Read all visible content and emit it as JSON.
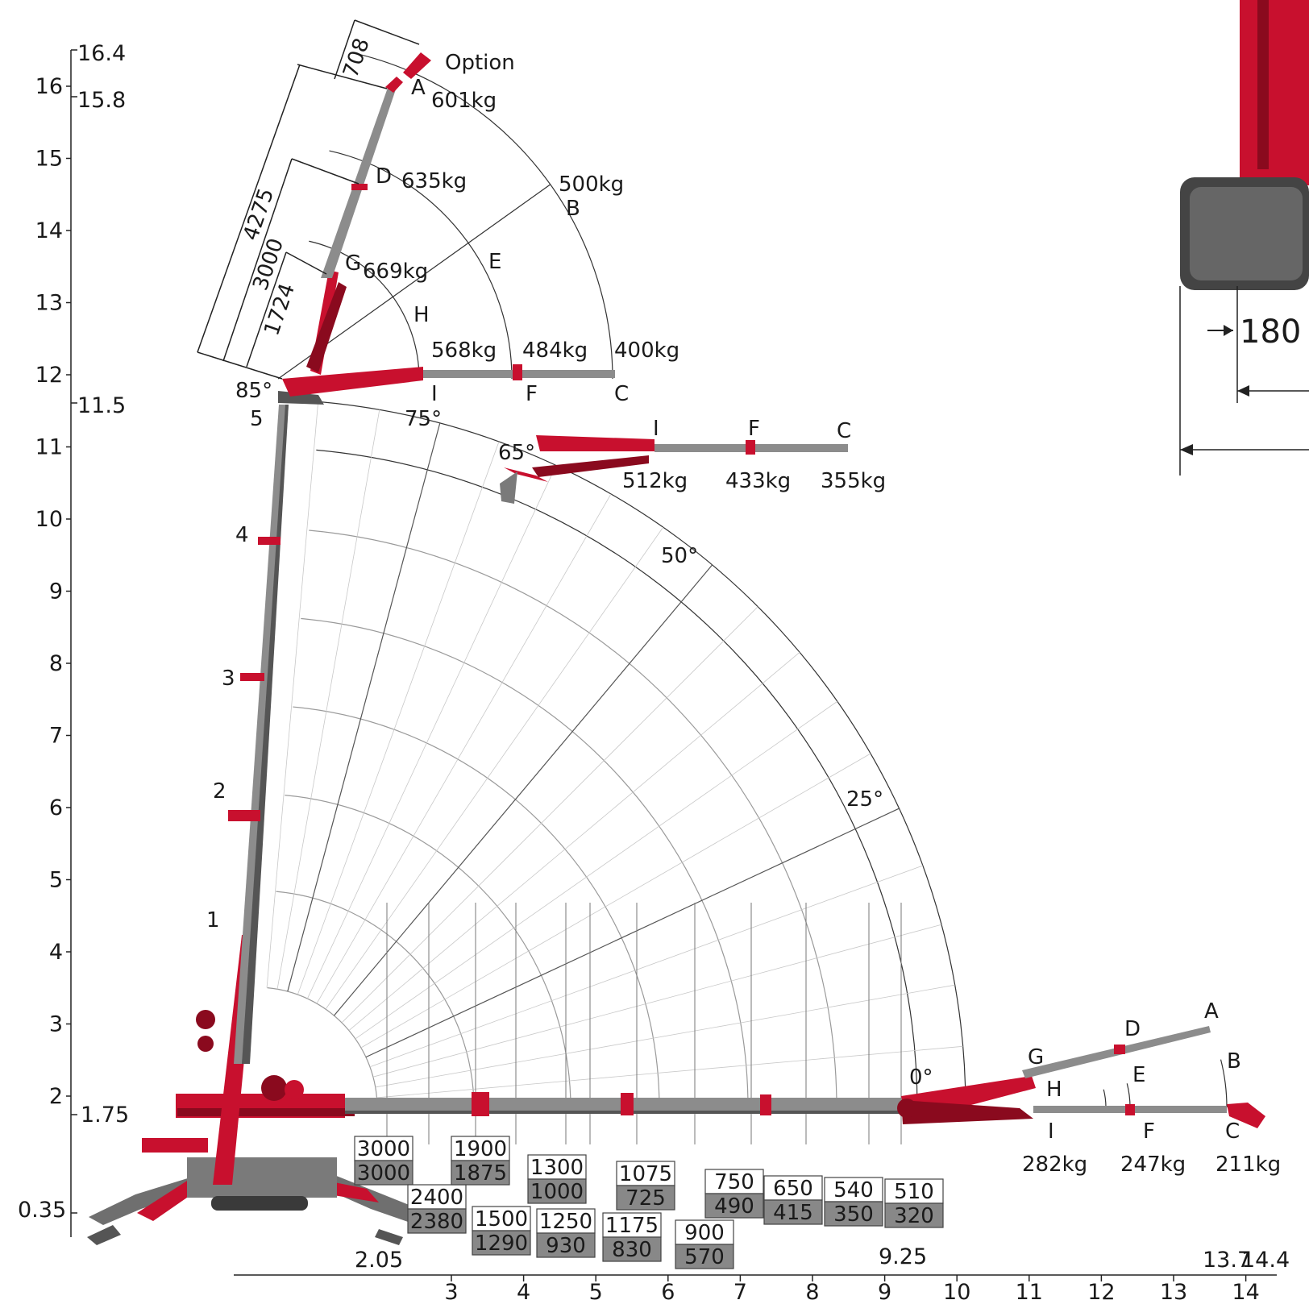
{
  "colors": {
    "boom": "#8c8c8c",
    "boom_dark": "#555555",
    "frame": "#c8102e",
    "frame_dark": "#8a0a1e",
    "grid": "#bdbdbd",
    "arc": "#333333",
    "box_fill": "#888888"
  },
  "y_axis": {
    "ticks": [
      "2",
      "3",
      "4",
      "5",
      "6",
      "7",
      "8",
      "9",
      "10",
      "11",
      "12",
      "13",
      "14",
      "15",
      "16"
    ],
    "levels": [
      "16.4",
      "15.8",
      "11.5",
      "1.75",
      "0.35"
    ]
  },
  "x_axis": {
    "ticks": [
      "3",
      "4",
      "5",
      "6",
      "7",
      "8",
      "9",
      "10",
      "11",
      "12",
      "13",
      "14"
    ],
    "levels": [
      "2.05",
      "9.25",
      "13.7",
      "14.4"
    ]
  },
  "jib_dims": [
    "708",
    "4275",
    "3000",
    "1724"
  ],
  "section_numbers": [
    "1",
    "2",
    "3",
    "4",
    "5"
  ],
  "angles": {
    "a85": "85°",
    "a75": "75°",
    "a65": "65°",
    "a50": "50°",
    "a25": "25°",
    "a0": "0°"
  },
  "jib_top": {
    "option": "Option",
    "A": "A",
    "A_load": "601kg",
    "D": "D",
    "D_load": "635kg",
    "G": "G",
    "G_load": "669kg",
    "B": "B",
    "B_load": "500kg",
    "E": "E",
    "H": "H",
    "I": "I",
    "F": "F",
    "C": "C",
    "I_load": "568kg",
    "F_load": "484kg",
    "C_load": "400kg"
  },
  "jib_mid": {
    "I": "I",
    "F": "F",
    "C": "C",
    "I_load": "512kg",
    "F_load": "433kg",
    "C_load": "355kg"
  },
  "jib_low": {
    "A": "A",
    "D": "D",
    "G": "G",
    "B": "B",
    "E": "E",
    "H": "H",
    "I": "I",
    "F": "F",
    "C": "C",
    "I_load": "282kg",
    "F_load": "247kg",
    "C_load": "211kg"
  },
  "load_table": [
    {
      "top": "3000",
      "bottom": "3000"
    },
    {
      "top": "2400",
      "bottom": "2380"
    },
    {
      "top": "1900",
      "bottom": "1875"
    },
    {
      "top": "1500",
      "bottom": "1290"
    },
    {
      "top": "1300",
      "bottom": "1000"
    },
    {
      "top": "1250",
      "bottom": "930"
    },
    {
      "top": "1075",
      "bottom": "725"
    },
    {
      "top": "1175",
      "bottom": "830"
    },
    {
      "top": "900",
      "bottom": "570"
    },
    {
      "top": "750",
      "bottom": "490"
    },
    {
      "top": "650",
      "bottom": "415"
    },
    {
      "top": "540",
      "bottom": "350"
    },
    {
      "top": "510",
      "bottom": "320"
    }
  ],
  "inset": {
    "dim": "180"
  }
}
